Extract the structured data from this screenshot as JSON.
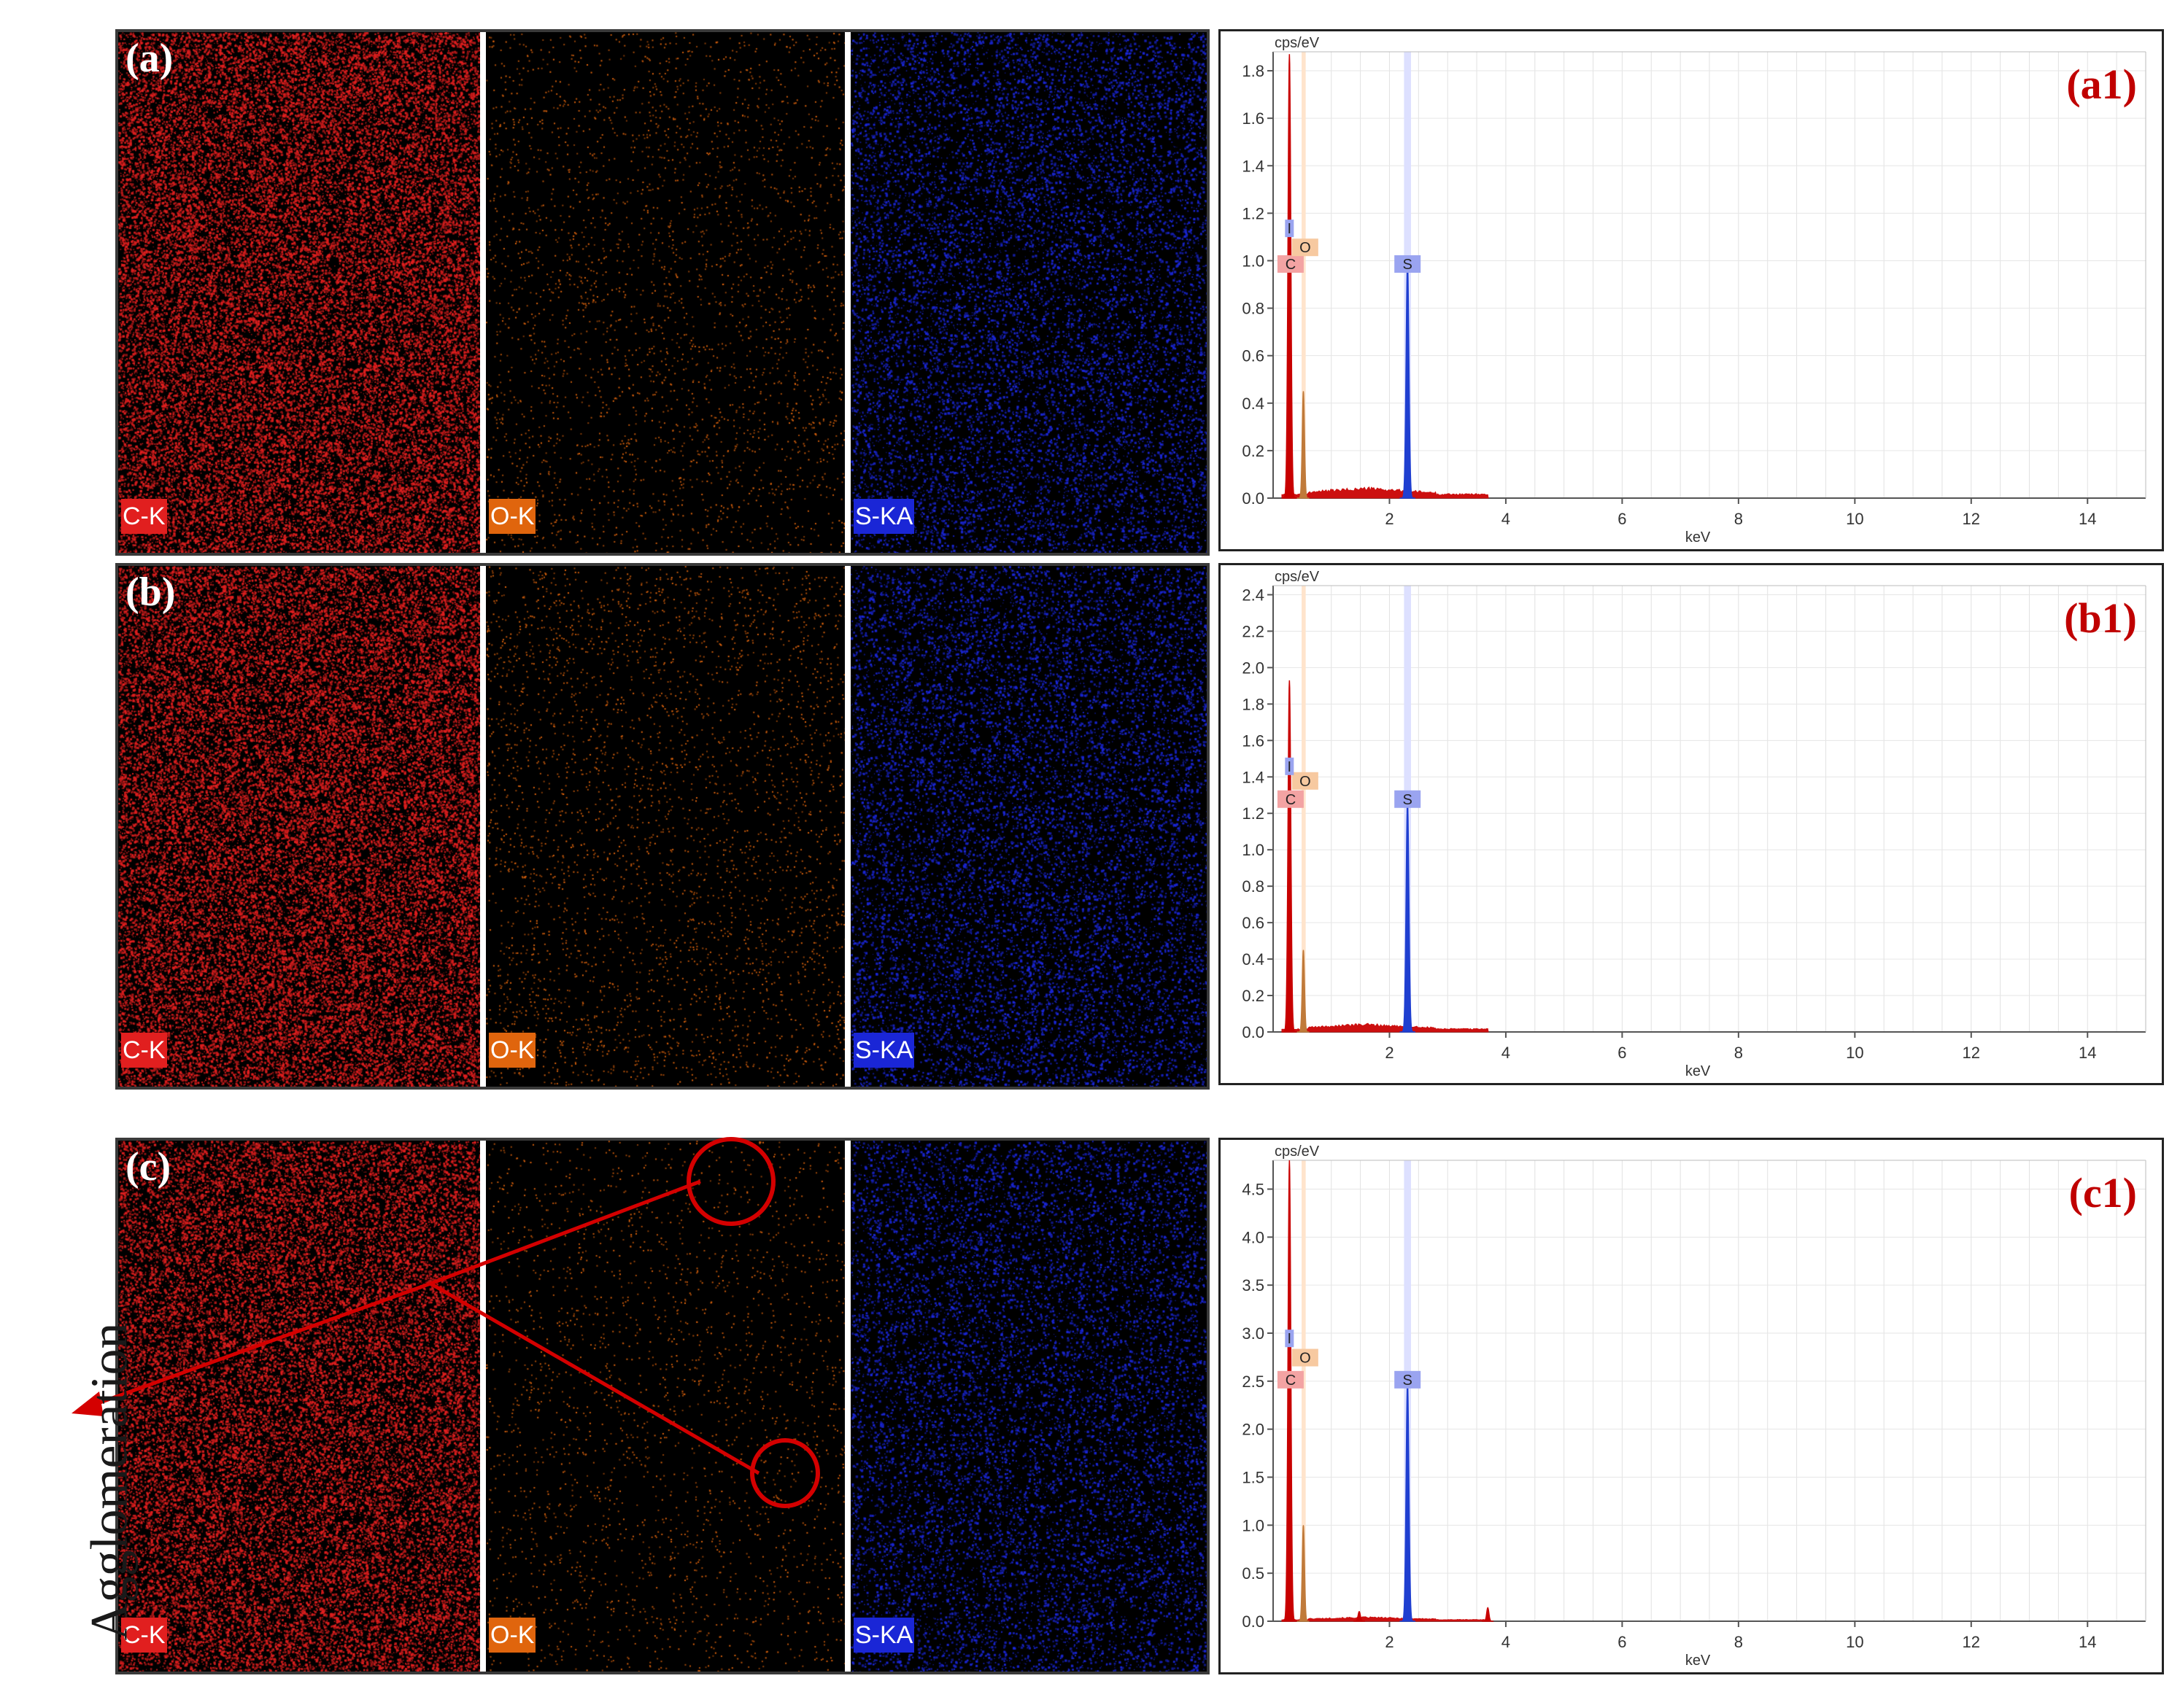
{
  "colors": {
    "carbon": "#e11f1f",
    "oxygen": "#e0650d",
    "sulfur": "#1a26d6",
    "label_red": "#c00000"
  },
  "rows": [
    {
      "id": "a",
      "panel_label": "(a)",
      "maps": [
        {
          "element": "C-K",
          "color": "#e11f1f",
          "density": 0.55
        },
        {
          "element": "O-K",
          "color": "#e0650d",
          "density": 0.05
        },
        {
          "element": "S-KA",
          "color": "#1a26d6",
          "density": 0.22
        }
      ]
    },
    {
      "id": "b",
      "panel_label": "(b)",
      "maps": [
        {
          "element": "C-K",
          "color": "#e11f1f",
          "density": 0.55
        },
        {
          "element": "O-K",
          "color": "#e0650d",
          "density": 0.06
        },
        {
          "element": "S-KA",
          "color": "#1a26d6",
          "density": 0.22
        }
      ]
    },
    {
      "id": "c",
      "panel_label": "(c)",
      "maps": [
        {
          "element": "C-K",
          "color": "#e11f1f",
          "density": 0.5
        },
        {
          "element": "O-K",
          "color": "#e0650d",
          "density": 0.04
        },
        {
          "element": "S-KA",
          "color": "#1a26d6",
          "density": 0.2
        }
      ]
    }
  ],
  "annotation": {
    "text": "Agglomeration"
  },
  "chart_data": [
    {
      "type": "line",
      "panel_label": "(a1)",
      "ylabel": "cps/eV",
      "xlabel": "keV",
      "xlim": [
        0,
        15
      ],
      "ylim": [
        0,
        1.88
      ],
      "yticks": [
        0.0,
        0.2,
        0.4,
        0.6,
        0.8,
        1.0,
        1.2,
        1.4,
        1.6,
        1.8
      ],
      "ytick_labels": [
        "0.0",
        "0.2",
        "0.4",
        "0.6",
        "0.8",
        "1.0",
        "1.2",
        "1.4",
        "1.6",
        "1.8"
      ],
      "xticks": [
        2,
        4,
        6,
        8,
        10,
        12,
        14
      ],
      "peaks": [
        {
          "element": "C",
          "x": 0.28,
          "y": 1.87
        },
        {
          "element": "O",
          "x": 0.52,
          "y": 0.45
        },
        {
          "element": "S",
          "x": 2.31,
          "y": 1.0
        }
      ],
      "peak_labels": [
        {
          "text": "C",
          "x": 0.3,
          "y": 0.98
        },
        {
          "text": "O",
          "x": 0.55,
          "y": 1.05
        },
        {
          "text": "S",
          "x": 2.31,
          "y": 0.98
        },
        {
          "text": "I",
          "x": 0.28,
          "y": 1.13
        }
      ],
      "background": {
        "level": 0.04,
        "end": 3.7
      }
    },
    {
      "type": "line",
      "panel_label": "(b1)",
      "ylabel": "cps/eV",
      "xlabel": "keV",
      "xlim": [
        0,
        15
      ],
      "ylim": [
        0,
        2.45
      ],
      "yticks": [
        0.0,
        0.2,
        0.4,
        0.6,
        0.8,
        1.0,
        1.2,
        1.4,
        1.6,
        1.8,
        2.0,
        2.2,
        2.4
      ],
      "ytick_labels": [
        "0.0",
        "0.2",
        "0.4",
        "0.6",
        "0.8",
        "1.0",
        "1.2",
        "1.4",
        "1.6",
        "1.8",
        "2.0",
        "2.2",
        "2.4"
      ],
      "xticks": [
        2,
        4,
        6,
        8,
        10,
        12,
        14
      ],
      "peaks": [
        {
          "element": "C",
          "x": 0.28,
          "y": 1.93
        },
        {
          "element": "O",
          "x": 0.52,
          "y": 0.45
        },
        {
          "element": "S",
          "x": 2.31,
          "y": 1.27
        }
      ],
      "peak_labels": [
        {
          "text": "C",
          "x": 0.3,
          "y": 1.27
        },
        {
          "text": "O",
          "x": 0.55,
          "y": 1.37
        },
        {
          "text": "S",
          "x": 2.31,
          "y": 1.27
        },
        {
          "text": "I",
          "x": 0.28,
          "y": 1.45
        }
      ],
      "background": {
        "level": 0.04,
        "end": 3.7
      }
    },
    {
      "type": "line",
      "panel_label": "(c1)",
      "ylabel": "cps/eV",
      "xlabel": "keV",
      "xlim": [
        0,
        15
      ],
      "ylim": [
        0,
        4.8
      ],
      "yticks": [
        0.0,
        0.5,
        1.0,
        1.5,
        2.0,
        2.5,
        3.0,
        3.5,
        4.0,
        4.5
      ],
      "ytick_labels": [
        "0.0",
        "0.5",
        "1.0",
        "1.5",
        "2.0",
        "2.5",
        "3.0",
        "3.5",
        "4.0",
        "4.5"
      ],
      "xticks": [
        2,
        4,
        6,
        8,
        10,
        12,
        14
      ],
      "peaks": [
        {
          "element": "C",
          "x": 0.28,
          "y": 4.8
        },
        {
          "element": "O",
          "x": 0.52,
          "y": 1.0
        },
        {
          "element": "S",
          "x": 2.31,
          "y": 2.5
        },
        {
          "element": "",
          "x": 1.48,
          "y": 0.1
        },
        {
          "element": "",
          "x": 3.69,
          "y": 0.14
        }
      ],
      "peak_labels": [
        {
          "text": "C",
          "x": 0.3,
          "y": 2.5
        },
        {
          "text": "O",
          "x": 0.55,
          "y": 2.73
        },
        {
          "text": "S",
          "x": 2.31,
          "y": 2.5
        },
        {
          "text": "I",
          "x": 0.28,
          "y": 2.93
        }
      ],
      "background": {
        "level": 0.04,
        "end": 3.7
      }
    }
  ]
}
